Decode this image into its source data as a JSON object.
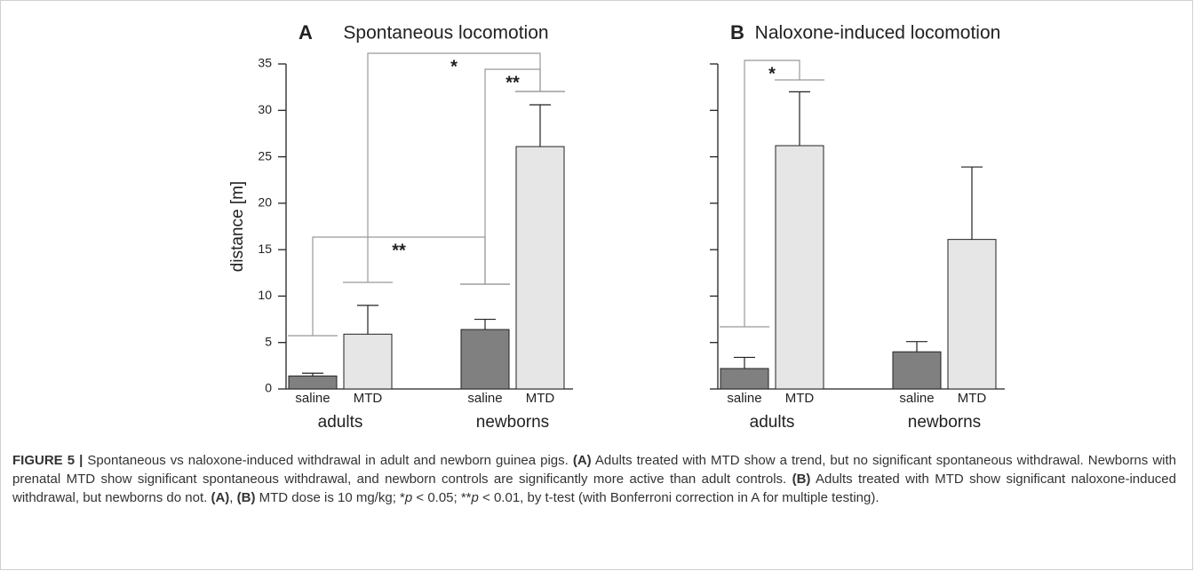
{
  "chart_data": [
    {
      "type": "bar",
      "panel": "A",
      "title": "Spontaneous locomotion",
      "y_label": "distance [m]",
      "categories": [
        "adults",
        "newborns"
      ],
      "series": [
        {
          "name": "saline",
          "color": "#808080",
          "values": [
            1.4,
            6.4
          ],
          "errors": [
            0.3,
            1.1
          ]
        },
        {
          "name": "MTD",
          "color": "#e6e6e6",
          "values": [
            5.9,
            26.1
          ],
          "errors": [
            3.1,
            4.5
          ]
        }
      ],
      "ylim": [
        0,
        35
      ],
      "yticks": [
        0,
        5,
        10,
        15,
        20,
        25,
        30,
        35
      ],
      "tick_labels": true,
      "annotations": [
        "**",
        "*",
        "**"
      ]
    },
    {
      "type": "bar",
      "panel": "B",
      "title": "Naloxone-induced locomotion",
      "categories": [
        "adults",
        "newborns"
      ],
      "series": [
        {
          "name": "saline",
          "color": "#808080",
          "values": [
            2.2,
            4.0
          ],
          "errors": [
            1.2,
            1.1
          ]
        },
        {
          "name": "MTD",
          "color": "#e6e6e6",
          "values": [
            26.2,
            16.1
          ],
          "errors": [
            5.8,
            7.8
          ]
        }
      ],
      "ylim": [
        0,
        35
      ],
      "yticks": [
        0,
        5,
        10,
        15,
        20,
        25,
        30,
        35
      ],
      "tick_labels": false,
      "annotations": [
        "*"
      ]
    }
  ],
  "caption": [
    {
      "text": "FIGURE 5 |",
      "style": "bold"
    },
    {
      "text": " Spontaneous vs naloxone-induced withdrawal in adult and newborn guinea pigs. ",
      "style": "normal"
    },
    {
      "text": "(A)",
      "style": "bold"
    },
    {
      "text": " Adults treated with MTD show a trend, but no significant spontaneous withdrawal. Newborns with prenatal MTD show significant spontaneous withdrawal, and newborn controls are significantly more active than adult controls. ",
      "style": "normal"
    },
    {
      "text": "(B)",
      "style": "bold"
    },
    {
      "text": " Adults treated with MTD show significant naloxone-induced withdrawal, but newborns do not. ",
      "style": "normal"
    },
    {
      "text": "(A)",
      "style": "bold"
    },
    {
      "text": ", ",
      "style": "normal"
    },
    {
      "text": "(B)",
      "style": "bold"
    },
    {
      "text": " MTD dose is 10 mg/kg; *",
      "style": "normal"
    },
    {
      "text": "p",
      "style": "italic"
    },
    {
      "text": " < 0.05; **",
      "style": "normal"
    },
    {
      "text": "p",
      "style": "italic"
    },
    {
      "text": " < 0.01, by t-test (with Bonferroni correction in A for multiple testing).",
      "style": "normal"
    }
  ]
}
